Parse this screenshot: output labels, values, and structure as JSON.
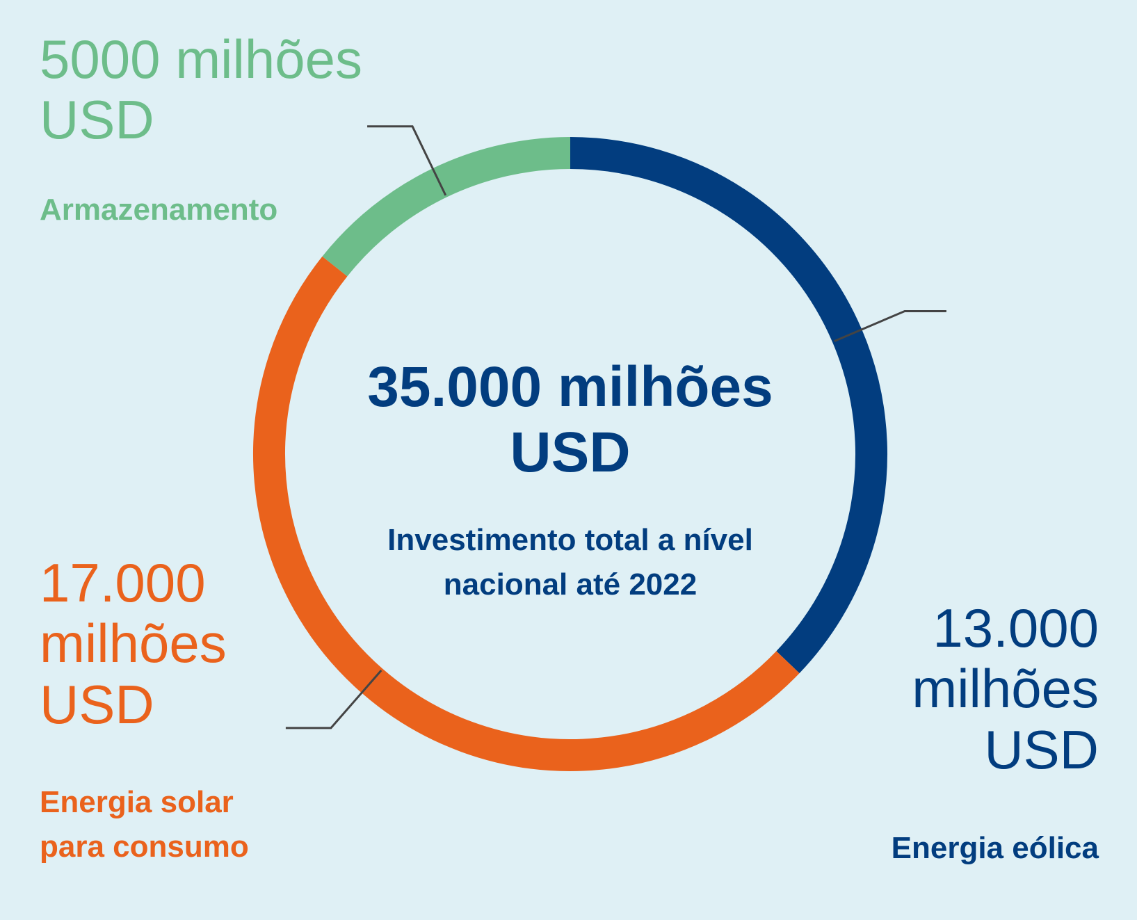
{
  "chart_data": {
    "type": "donut",
    "title": "35.000 milhões USD",
    "subtitle": "Investimento total a nível nacional até 2022",
    "categories": [
      "Energia eólica",
      "Energia solar para consumo",
      "Armazenamento"
    ],
    "values": [
      13000,
      17000,
      5000
    ],
    "value_labels": [
      "13.000 milhões USD",
      "17.000 milhões USD",
      "5000 milhões USD"
    ],
    "colors": [
      "#023d7f",
      "#ea621c",
      "#6dbd8a"
    ]
  }
}
